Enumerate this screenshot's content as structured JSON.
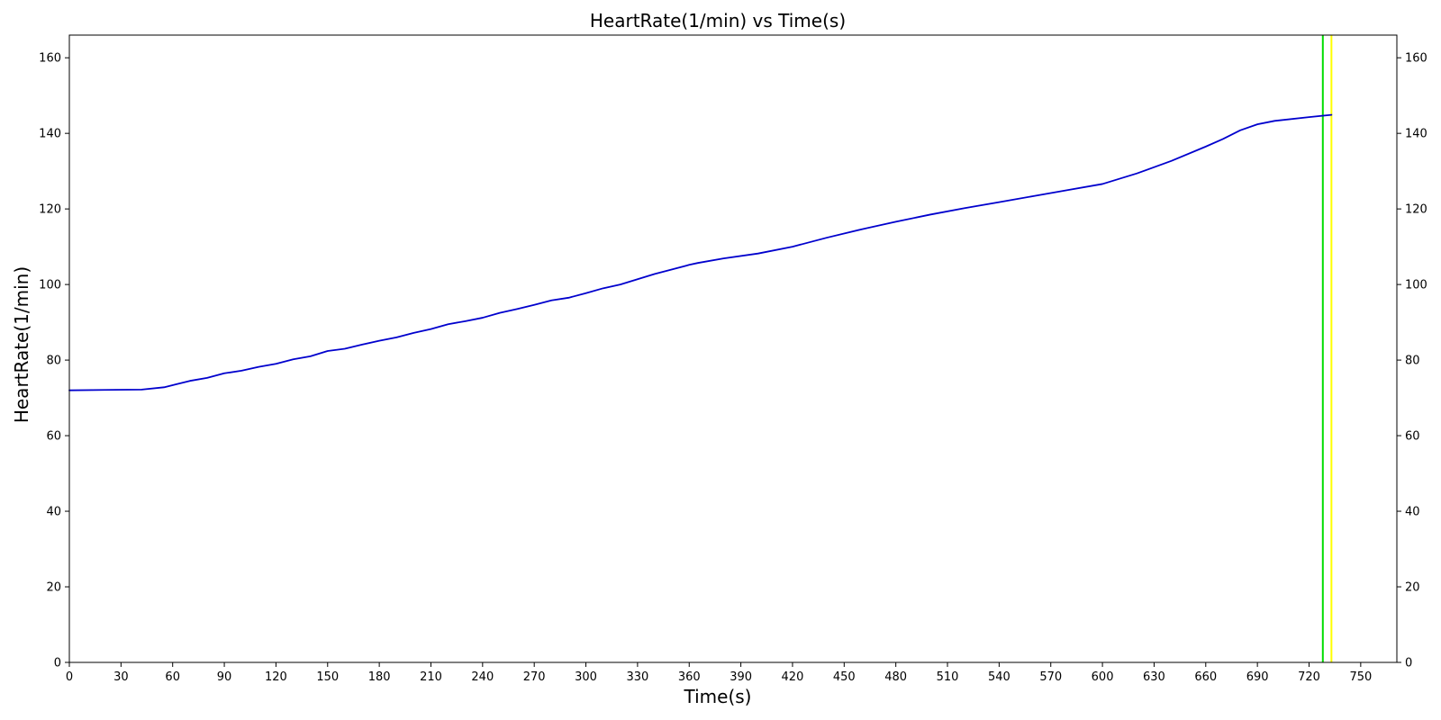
{
  "chart_data": {
    "type": "line",
    "title": "HeartRate(1/min) vs Time(s)",
    "xlabel": "Time(s)",
    "ylabel": "HeartRate(1/min)",
    "xlim": [
      0,
      771
    ],
    "ylim": [
      0,
      166
    ],
    "x_ticks": [
      0,
      30,
      60,
      90,
      120,
      150,
      180,
      210,
      240,
      270,
      300,
      330,
      360,
      390,
      420,
      450,
      480,
      510,
      540,
      570,
      600,
      630,
      660,
      690,
      720,
      750
    ],
    "y_ticks": [
      0,
      20,
      40,
      60,
      80,
      100,
      120,
      140,
      160
    ],
    "grid": false,
    "right_axis": true,
    "series": [
      {
        "color": "#0000cd",
        "x": [
          0,
          20,
          42,
          55,
          62,
          70,
          80,
          90,
          100,
          110,
          120,
          130,
          140,
          150,
          160,
          170,
          180,
          190,
          200,
          210,
          220,
          230,
          240,
          250,
          260,
          270,
          280,
          290,
          300,
          310,
          320,
          330,
          340,
          350,
          360,
          365,
          380,
          400,
          420,
          440,
          460,
          480,
          500,
          520,
          540,
          560,
          580,
          600,
          620,
          640,
          660,
          670,
          680,
          690,
          700,
          720,
          733
        ],
        "y": [
          72.0,
          72.1,
          72.2,
          72.8,
          73.6,
          74.5,
          75.3,
          76.5,
          77.2,
          78.2,
          79.0,
          80.2,
          81.0,
          82.4,
          83.0,
          84.1,
          85.1,
          86.0,
          87.2,
          88.2,
          89.5,
          90.3,
          91.2,
          92.5,
          93.5,
          94.6,
          95.8,
          96.5,
          97.7,
          99.0,
          100.0,
          101.4,
          102.8,
          104.0,
          105.2,
          105.7,
          106.9,
          108.2,
          110.0,
          112.4,
          114.6,
          116.6,
          118.5,
          120.2,
          121.8,
          123.4,
          125.0,
          126.6,
          129.4,
          132.7,
          136.5,
          138.5,
          140.8,
          142.4,
          143.3,
          144.3,
          144.9
        ]
      }
    ],
    "vertical_lines": [
      {
        "x": 728,
        "color": "#00dd00"
      },
      {
        "x": 733,
        "color": "#ffff00"
      }
    ]
  }
}
